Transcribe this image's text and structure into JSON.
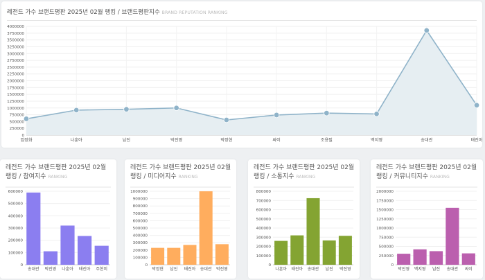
{
  "main": {
    "title": "레전드 가수 브랜드평판 2025년 02월 랭킹 / 브랜드평판지수",
    "subtitle": "BRAND REPUTATION RANKING",
    "chart_data": {
      "type": "area",
      "categories": [
        "엄정화",
        "나훈아",
        "남진",
        "박진영",
        "박정현",
        "싸이",
        "조용필",
        "백지영",
        "송대관",
        "태진아"
      ],
      "values": [
        600000,
        920000,
        950000,
        1000000,
        560000,
        740000,
        810000,
        780000,
        3850000,
        1100000
      ],
      "ylim": [
        0,
        4000000
      ],
      "yticks": [
        0,
        250000,
        500000,
        750000,
        1000000,
        1250000,
        1500000,
        1750000,
        2000000,
        2250000,
        2500000,
        2750000,
        3000000,
        3250000,
        3500000,
        3750000,
        4000000
      ],
      "line_color": "#8fb3c9",
      "fill_color": "#e6eef2"
    }
  },
  "small_charts": [
    {
      "title": "레전드 가수 브랜드평판 2025년 02월 랭킹 / 참여지수",
      "subtitle": "RANKING",
      "chart_data": {
        "type": "bar",
        "categories": [
          "송대관",
          "박진영",
          "나훈아",
          "태진아",
          "주현미"
        ],
        "values": [
          590000,
          110000,
          320000,
          235000,
          155000
        ],
        "ylim": [
          0,
          600000
        ],
        "yticks": [
          0,
          100000,
          200000,
          300000,
          400000,
          500000,
          600000
        ],
        "color": "#8b7ef0"
      }
    },
    {
      "title": "레전드 가수 브랜드평판 2025년 02월 랭킹 / 미디어지수",
      "subtitle": "RANKING",
      "chart_data": {
        "type": "bar",
        "categories": [
          "박정현",
          "남진",
          "태진아",
          "송대관",
          "박진영"
        ],
        "values": [
          230000,
          230000,
          270000,
          1000000,
          280000
        ],
        "ylim": [
          0,
          1000000
        ],
        "yticks": [
          0,
          100000,
          200000,
          300000,
          400000,
          500000,
          600000,
          700000,
          800000,
          900000,
          1000000
        ],
        "color": "#ffad5e"
      }
    },
    {
      "title": "레전드 가수 브랜드평판 2025년 02월 랭킹 / 소통지수",
      "subtitle": "RANKING",
      "chart_data": {
        "type": "bar",
        "categories": [
          "나훈아",
          "태진아",
          "송대관",
          "남진",
          "박진영"
        ],
        "values": [
          260000,
          320000,
          725000,
          265000,
          315000
        ],
        "ylim": [
          0,
          800000
        ],
        "yticks": [
          0,
          100000,
          200000,
          300000,
          400000,
          500000,
          600000,
          700000,
          800000
        ],
        "color": "#84a432"
      }
    },
    {
      "title": "레전드 가수 브랜드평판 2025년 02월 랭킹 / 커뮤니티지수",
      "subtitle": "RANKING",
      "chart_data": {
        "type": "bar",
        "categories": [
          "박진영",
          "백지영",
          "남진",
          "송대관",
          "싸이"
        ],
        "values": [
          300000,
          420000,
          370000,
          1550000,
          310000
        ],
        "ylim": [
          0,
          2000000
        ],
        "yticks": [
          0,
          250000,
          500000,
          750000,
          1000000,
          1250000,
          1500000,
          1750000,
          2000000
        ],
        "color": "#bb5fae"
      }
    }
  ]
}
